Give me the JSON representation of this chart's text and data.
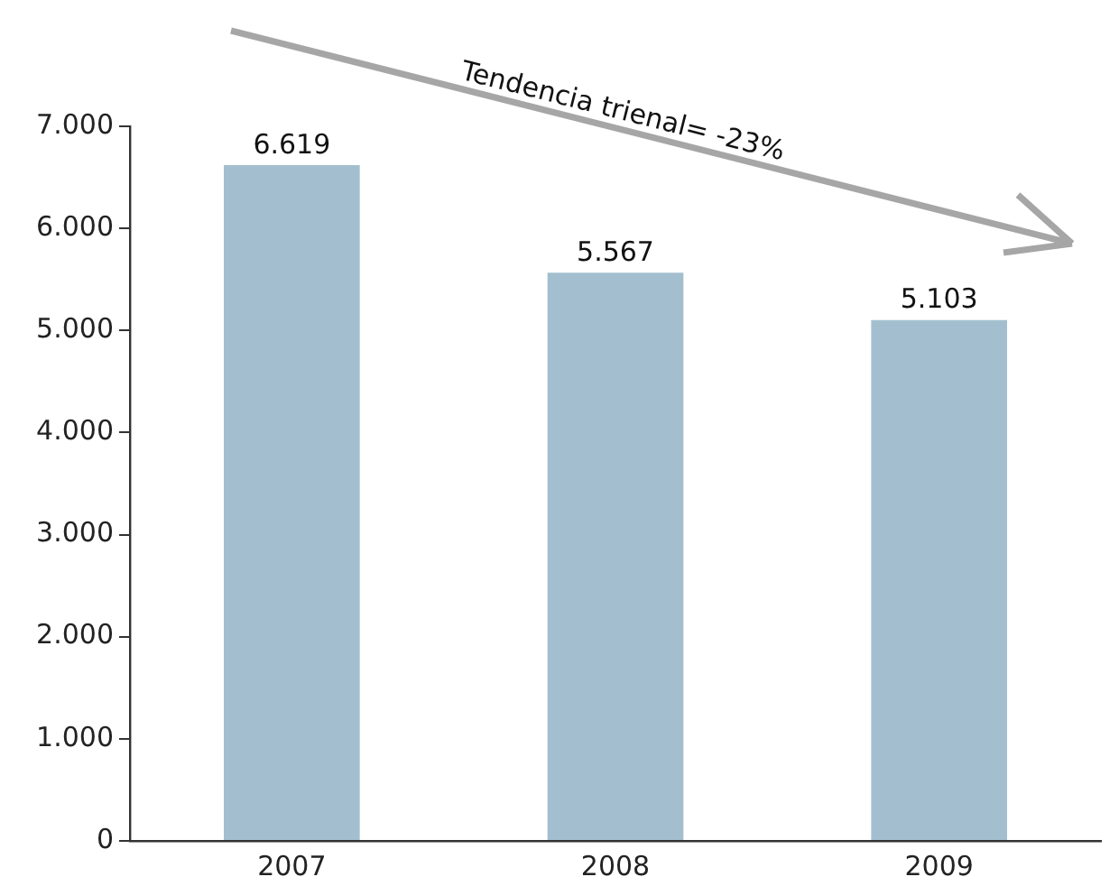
{
  "chart_data": {
    "type": "bar",
    "categories": [
      "2007",
      "2008",
      "2009"
    ],
    "values": [
      6619,
      5567,
      5103
    ],
    "color": "#a3bfcf",
    "value_labels": [
      "6.619",
      "5.567",
      "5.103"
    ],
    "ylim": [
      0,
      7000
    ],
    "yticks": [
      {
        "value": 0,
        "label": "0"
      },
      {
        "value": 1000,
        "label": "1.000"
      },
      {
        "value": 2000,
        "label": "2.000"
      },
      {
        "value": 3000,
        "label": "3.000"
      },
      {
        "value": 4000,
        "label": "4.000"
      },
      {
        "value": 5000,
        "label": "5.000"
      },
      {
        "value": 6000,
        "label": "6.000"
      },
      {
        "value": 7000,
        "label": "7.000"
      }
    ],
    "annotations": [
      "Tendencia trienal= -23%"
    ]
  }
}
